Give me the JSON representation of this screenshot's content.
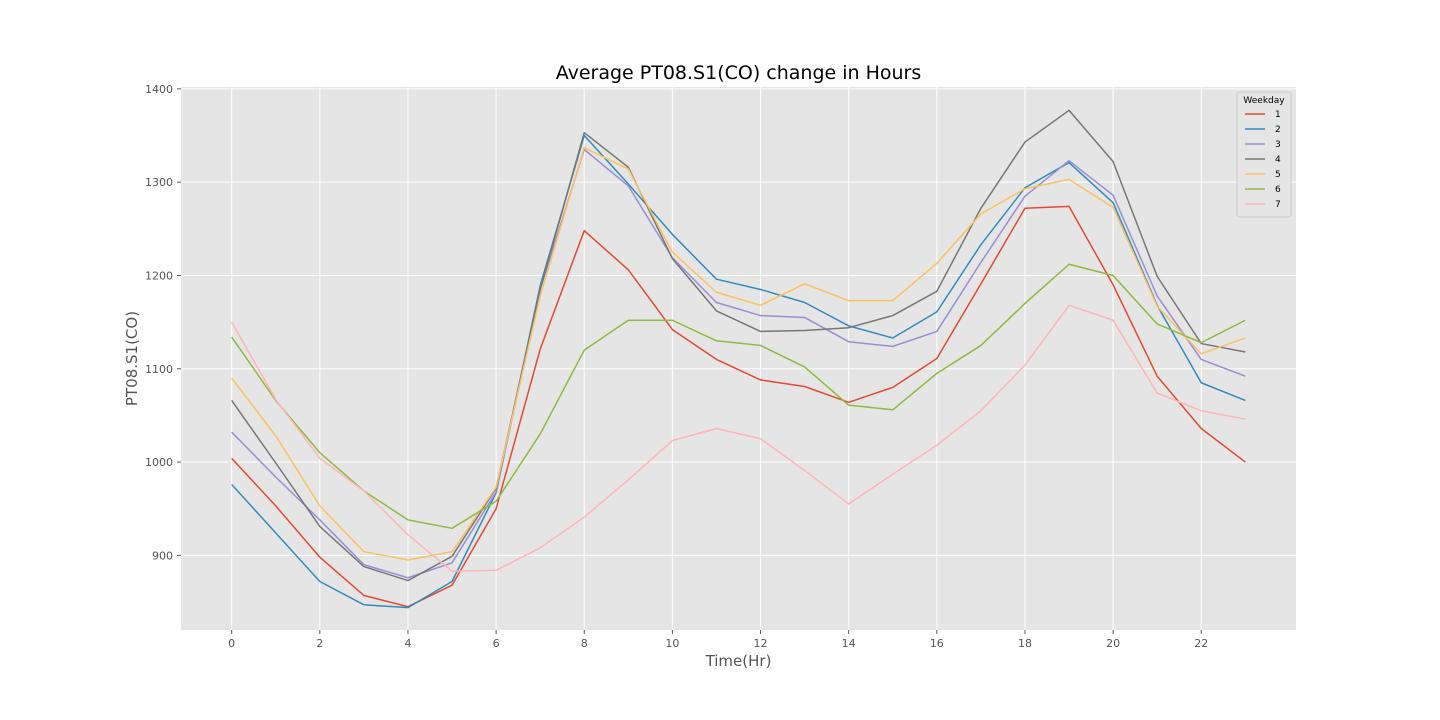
{
  "chart_data": {
    "type": "line",
    "title": "Average PT08.S1(CO) change in Hours",
    "xlabel": "Time(Hr)",
    "ylabel": "PT08.S1(CO)",
    "xlim": [
      -1.15,
      24.15
    ],
    "ylim": [
      820,
      1402
    ],
    "x_ticks": [
      0,
      2,
      4,
      6,
      8,
      10,
      12,
      14,
      16,
      18,
      20,
      22
    ],
    "y_ticks": [
      900,
      1000,
      1100,
      1200,
      1300,
      1400
    ],
    "grid": true,
    "legend": {
      "title": "Weekday",
      "position": "top-right"
    },
    "x": [
      0,
      1,
      2,
      3,
      4,
      5,
      6,
      7,
      8,
      9,
      10,
      11,
      12,
      13,
      14,
      15,
      16,
      17,
      18,
      19,
      20,
      21,
      22,
      23
    ],
    "series": [
      {
        "name": "1",
        "color": "#E24A33",
        "values": [
          1004,
          953,
          898,
          857,
          845,
          868,
          950,
          1121,
          1248,
          1206,
          1142,
          1110,
          1088,
          1081,
          1064,
          1080,
          1111,
          1191,
          1272,
          1274,
          1190,
          1092,
          1036,
          1000
        ]
      },
      {
        "name": "2",
        "color": "#348ABD",
        "values": [
          976,
          924,
          872,
          847,
          844,
          872,
          967,
          1189,
          1350,
          1298,
          1244,
          1196,
          1185,
          1171,
          1146,
          1133,
          1161,
          1233,
          1294,
          1321,
          1278,
          1168,
          1085,
          1066
        ]
      },
      {
        "name": "3",
        "color": "#988ED5",
        "values": [
          1032,
          984,
          938,
          890,
          876,
          892,
          968,
          1185,
          1335,
          1296,
          1219,
          1171,
          1157,
          1155,
          1129,
          1124,
          1140,
          1214,
          1285,
          1323,
          1286,
          1178,
          1110,
          1092
        ]
      },
      {
        "name": "4",
        "color": "#777777",
        "values": [
          1066,
          999,
          931,
          888,
          873,
          899,
          972,
          1185,
          1353,
          1316,
          1218,
          1162,
          1140,
          1141,
          1144,
          1157,
          1183,
          1272,
          1343,
          1377,
          1322,
          1199,
          1127,
          1118
        ]
      },
      {
        "name": "5",
        "color": "#FBC15E",
        "values": [
          1090,
          1028,
          953,
          904,
          895,
          904,
          973,
          1178,
          1337,
          1314,
          1225,
          1182,
          1168,
          1191,
          1173,
          1173,
          1213,
          1266,
          1293,
          1303,
          1273,
          1167,
          1116,
          1133
        ]
      },
      {
        "name": "6",
        "color": "#8EBA42",
        "values": [
          1134,
          1066,
          1010,
          969,
          938,
          929,
          958,
          1030,
          1120,
          1152,
          1152,
          1130,
          1125,
          1102,
          1061,
          1056,
          1095,
          1125,
          1170,
          1212,
          1200,
          1148,
          1128,
          1152
        ]
      },
      {
        "name": "7",
        "color": "#FFB5B8",
        "values": [
          1150,
          1067,
          1004,
          969,
          922,
          883,
          884,
          908,
          941,
          981,
          1023,
          1036,
          1025,
          991,
          955,
          987,
          1018,
          1055,
          1104,
          1168,
          1152,
          1074,
          1055,
          1046
        ]
      }
    ]
  }
}
